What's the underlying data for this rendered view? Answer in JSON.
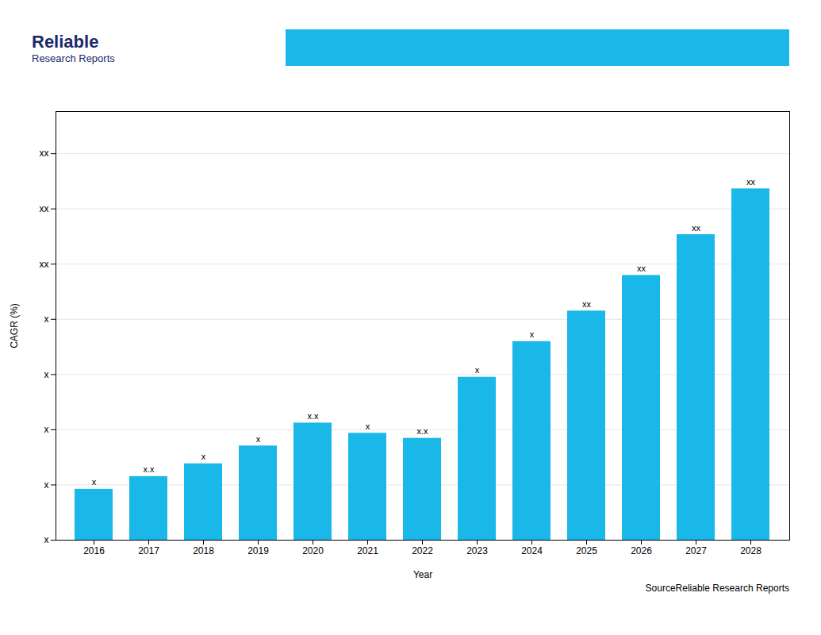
{
  "chart_data": {
    "type": "bar",
    "categories": [
      "2016",
      "2017",
      "2018",
      "2019",
      "2020",
      "2021",
      "2022",
      "2023",
      "2024",
      "2025",
      "2026",
      "2027",
      "2028"
    ],
    "values": [
      1.0,
      1.25,
      1.5,
      1.85,
      2.3,
      2.1,
      2.0,
      3.2,
      3.9,
      4.5,
      5.2,
      6.0,
      6.9
    ],
    "value_labels": [
      "x",
      "x.x",
      "x",
      "x",
      "x.x",
      "x",
      "x.x",
      "x",
      "x",
      "xx",
      "xx",
      "xx",
      "xx"
    ],
    "color": "#19B8E8",
    "xlabel": "Year",
    "ylabel": "CAGR (%)",
    "ylim": [
      0,
      8.418
    ],
    "yticks": [
      {
        "value": 0,
        "label": "x"
      },
      {
        "value": 1.0842857142857143,
        "label": "x"
      },
      {
        "value": 2.1685714285714286,
        "label": "x"
      },
      {
        "value": 3.252857142857143,
        "label": "x"
      },
      {
        "value": 4.337142857142857,
        "label": "x"
      },
      {
        "value": 5.421428571428572,
        "label": "xx"
      },
      {
        "value": 6.505714285714286,
        "label": "xx"
      },
      {
        "value": 7.59,
        "label": "xx"
      }
    ],
    "grid": true,
    "annotations": [
      "Reliable",
      "Research Reports",
      "SourceReliable Research Reports"
    ]
  }
}
